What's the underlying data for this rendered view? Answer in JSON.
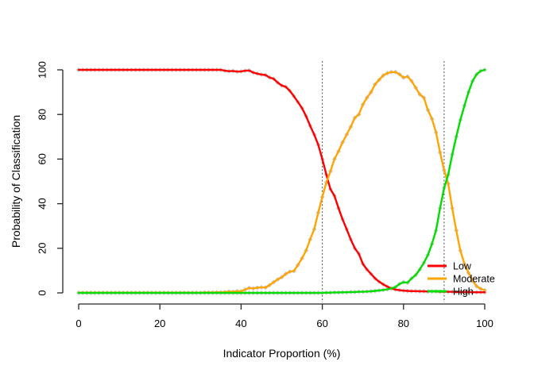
{
  "figure": {
    "background": "#ffffff",
    "text_color": "#000000",
    "axis_color": "#262626"
  },
  "chart_data": {
    "type": "line",
    "title": "",
    "xlabel": "Indicator Proportion (%)",
    "ylabel": "Probability of Classification",
    "xlim": [
      0,
      100
    ],
    "ylim": [
      0,
      100
    ],
    "xticks": [
      0,
      20,
      40,
      60,
      80,
      100
    ],
    "yticks": [
      0,
      20,
      40,
      60,
      80,
      100
    ],
    "grid": false,
    "legend": {
      "position": "bottom-right-inside",
      "entries": [
        "Low",
        "Moderate",
        "High"
      ]
    },
    "vlines": [
      {
        "x": 60,
        "style": "dotted",
        "color": "#3f3f3f"
      },
      {
        "x": 90,
        "style": "dotted",
        "color": "#3f3f3f"
      }
    ],
    "marker": {
      "shape": "diamond",
      "color": "#c8c8c8"
    },
    "x": [
      0,
      1,
      2,
      3,
      4,
      5,
      6,
      7,
      8,
      9,
      10,
      11,
      12,
      13,
      14,
      15,
      16,
      17,
      18,
      19,
      20,
      21,
      22,
      23,
      24,
      25,
      26,
      27,
      28,
      29,
      30,
      31,
      32,
      33,
      34,
      35,
      36,
      37,
      38,
      39,
      40,
      41,
      42,
      43,
      44,
      45,
      46,
      47,
      48,
      49,
      50,
      51,
      52,
      53,
      54,
      55,
      56,
      57,
      58,
      59,
      60,
      61,
      62,
      63,
      64,
      65,
      66,
      67,
      68,
      69,
      70,
      71,
      72,
      73,
      74,
      75,
      76,
      77,
      78,
      79,
      80,
      81,
      82,
      83,
      84,
      85,
      86,
      87,
      88,
      89,
      90,
      91,
      92,
      93,
      94,
      95,
      96,
      97,
      98,
      99,
      100
    ],
    "series": [
      {
        "name": "Low",
        "color": "#ff0000",
        "values": [
          100,
          100,
          100,
          100,
          100,
          100,
          100,
          100,
          100,
          100,
          100,
          100,
          100,
          100,
          100,
          100,
          100,
          100,
          100,
          100,
          100,
          100,
          100,
          100,
          100,
          100,
          100,
          100,
          100,
          100,
          100,
          100,
          100,
          100,
          100,
          100,
          99.6,
          99.4,
          99.5,
          99.2,
          99.3,
          99.6,
          99.7,
          98.8,
          98.3,
          97.9,
          97.7,
          96.6,
          96,
          94.3,
          93,
          92.4,
          90.6,
          88.2,
          85.6,
          82.8,
          79.2,
          74.9,
          71,
          66.4,
          60,
          53,
          46.5,
          43.5,
          38,
          33,
          28.5,
          24,
          20,
          17.5,
          13,
          10.5,
          8.5,
          6.5,
          5,
          3.8,
          2.8,
          2,
          1.5,
          1.2,
          1,
          0.9,
          0.8,
          0.8,
          0.7,
          0.7,
          0.6,
          0.6,
          0.6,
          0.5,
          0.5,
          0.5,
          0.5,
          0.4,
          0.4,
          0.4,
          0.4,
          0.3,
          0.3,
          0.3,
          0.3
        ]
      },
      {
        "name": "Moderate",
        "color": "#ffa500",
        "values": [
          0.1,
          0.1,
          0.1,
          0.1,
          0.1,
          0.1,
          0.1,
          0.1,
          0.1,
          0.1,
          0.1,
          0.1,
          0.1,
          0.1,
          0.1,
          0.1,
          0.1,
          0.1,
          0.1,
          0.1,
          0.1,
          0.1,
          0.1,
          0.1,
          0.1,
          0.1,
          0.1,
          0.1,
          0.1,
          0.1,
          0.1,
          0.2,
          0.2,
          0.2,
          0.3,
          0.3,
          0.4,
          0.6,
          0.5,
          0.8,
          0.7,
          1.5,
          2.2,
          2,
          2.3,
          2.5,
          2.4,
          3.5,
          4.8,
          6,
          7,
          8.5,
          9.5,
          9.8,
          12.5,
          15.5,
          19,
          24,
          28.5,
          36,
          43,
          49.5,
          54.5,
          60,
          63.5,
          67.5,
          71,
          74.5,
          78.5,
          80,
          84.5,
          87.5,
          90,
          93.5,
          95.5,
          97.5,
          98.5,
          99,
          99,
          98,
          96.5,
          97,
          95,
          92,
          89,
          87.5,
          82,
          78,
          72,
          63,
          55,
          49,
          38,
          28,
          19,
          13,
          9,
          5.5,
          3,
          1.8,
          1.2
        ]
      },
      {
        "name": "High",
        "color": "#00dd00",
        "values": [
          0,
          0,
          0,
          0,
          0,
          0,
          0,
          0,
          0,
          0,
          0,
          0,
          0,
          0,
          0,
          0,
          0,
          0,
          0,
          0,
          0,
          0,
          0,
          0,
          0,
          0,
          0,
          0,
          0,
          0,
          0,
          0,
          0,
          0,
          0,
          0,
          0,
          0,
          0,
          0,
          0,
          0,
          0,
          0,
          0,
          0,
          0,
          0,
          0,
          0,
          0,
          0,
          0,
          0,
          0,
          0,
          0,
          0,
          0,
          0,
          0,
          0.1,
          0.1,
          0.2,
          0.2,
          0.3,
          0.3,
          0.4,
          0.4,
          0.5,
          0.5,
          0.6,
          0.7,
          0.9,
          1.1,
          1.3,
          1.6,
          2,
          2.6,
          4,
          4.8,
          4.6,
          6.5,
          8,
          10.5,
          13.5,
          17,
          22,
          28,
          38,
          47,
          53,
          62,
          70,
          77.5,
          84,
          90,
          95,
          98,
          99.5,
          100
        ]
      }
    ]
  }
}
